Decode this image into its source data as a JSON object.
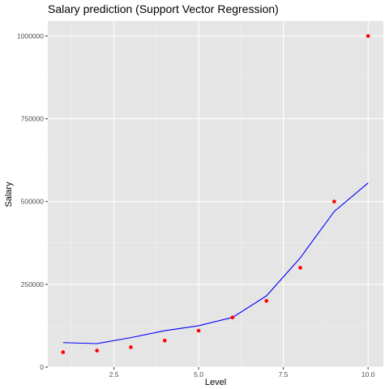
{
  "chart_data": {
    "type": "scatter",
    "title": "Salary prediction (Support Vector Regression)",
    "xlabel": "Level",
    "ylabel": "Salary",
    "xlim": [
      0.55,
      10.45
    ],
    "ylim": [
      0,
      1045000
    ],
    "x_ticks": [
      2.5,
      5.0,
      7.5,
      10.0
    ],
    "x_tick_labels": [
      "2.5",
      "5.0",
      "7.5",
      "10.0"
    ],
    "y_ticks": [
      0,
      250000,
      500000,
      750000,
      1000000
    ],
    "y_tick_labels": [
      "0",
      "250000",
      "500000",
      "750000",
      "1000000"
    ],
    "grid": true,
    "legend": "none",
    "series": [
      {
        "type": "scatter",
        "color": "#ff0000",
        "x": [
          1,
          2,
          3,
          4,
          5,
          6,
          7,
          8,
          9,
          10
        ],
        "y": [
          45000,
          50000,
          60000,
          80000,
          110000,
          150000,
          200000,
          300000,
          500000,
          1000000
        ]
      },
      {
        "type": "line",
        "color": "#0000ff",
        "x": [
          1,
          2,
          3,
          4,
          5,
          6,
          7,
          8,
          9,
          10
        ],
        "y": [
          74000,
          71000,
          89000,
          110000,
          125000,
          150000,
          215000,
          330000,
          470000,
          556000
        ]
      }
    ]
  }
}
